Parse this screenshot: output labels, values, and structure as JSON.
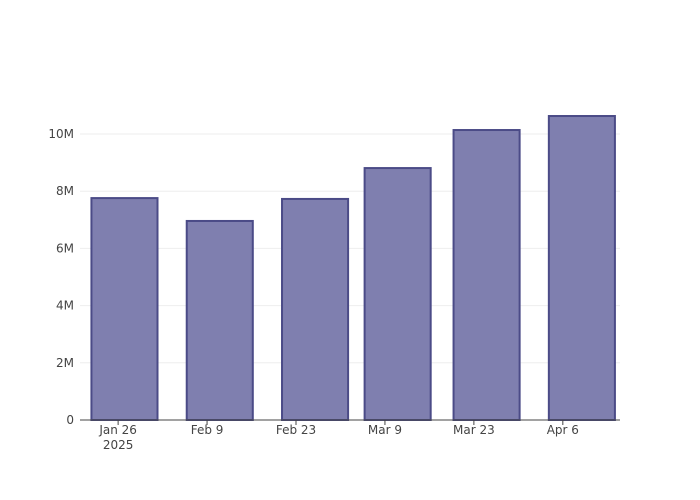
{
  "chart_data": {
    "type": "bar",
    "x": [
      "2025-01-27",
      "2025-02-11",
      "2025-02-26",
      "2025-03-11",
      "2025-03-25",
      "2025-04-09"
    ],
    "values": [
      7760000,
      6960000,
      7730000,
      8810000,
      10140000,
      10630000
    ],
    "color": "#7f7faf",
    "edge_color": "#4b4b87",
    "xlim": [
      "2025-01-20",
      "2025-04-15"
    ],
    "xticks": [
      {
        "value": "2025-01-26",
        "label": "Jan 26\n2025"
      },
      {
        "value": "2025-02-09",
        "label": "Feb 9"
      },
      {
        "value": "2025-02-23",
        "label": "Feb 23"
      },
      {
        "value": "2025-03-09",
        "label": "Mar 9"
      },
      {
        "value": "2025-03-23",
        "label": "Mar 23"
      },
      {
        "value": "2025-04-06",
        "label": "Apr 6"
      }
    ],
    "ylim": [
      0,
      11190000
    ],
    "yticks": [
      0,
      {
        "value": 2000000,
        "label": "2M"
      },
      {
        "value": 4000000,
        "label": "4M"
      },
      {
        "value": 6000000,
        "label": "6M"
      },
      {
        "value": 8000000,
        "label": "8M"
      },
      {
        "value": 10000000,
        "label": "10M"
      }
    ],
    "grid": true
  }
}
